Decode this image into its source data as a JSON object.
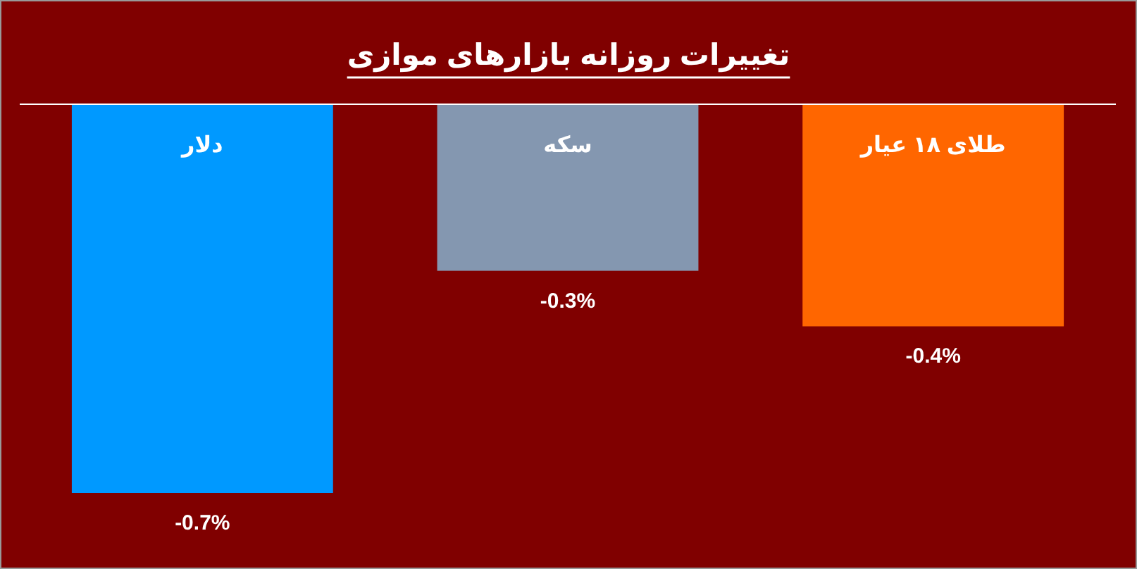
{
  "chart_data": {
    "type": "bar",
    "title": "تغییرات روزانه بازارهای موازی",
    "categories": [
      "دلار",
      "سکه",
      "طلای ۱۸ عیار"
    ],
    "values": [
      -0.7,
      -0.3,
      -0.4
    ],
    "colors": [
      "#0099ff",
      "#8497b0",
      "#ff6600"
    ],
    "value_labels": [
      "-0.7%",
      "-0.3%",
      "-0.4%"
    ]
  }
}
